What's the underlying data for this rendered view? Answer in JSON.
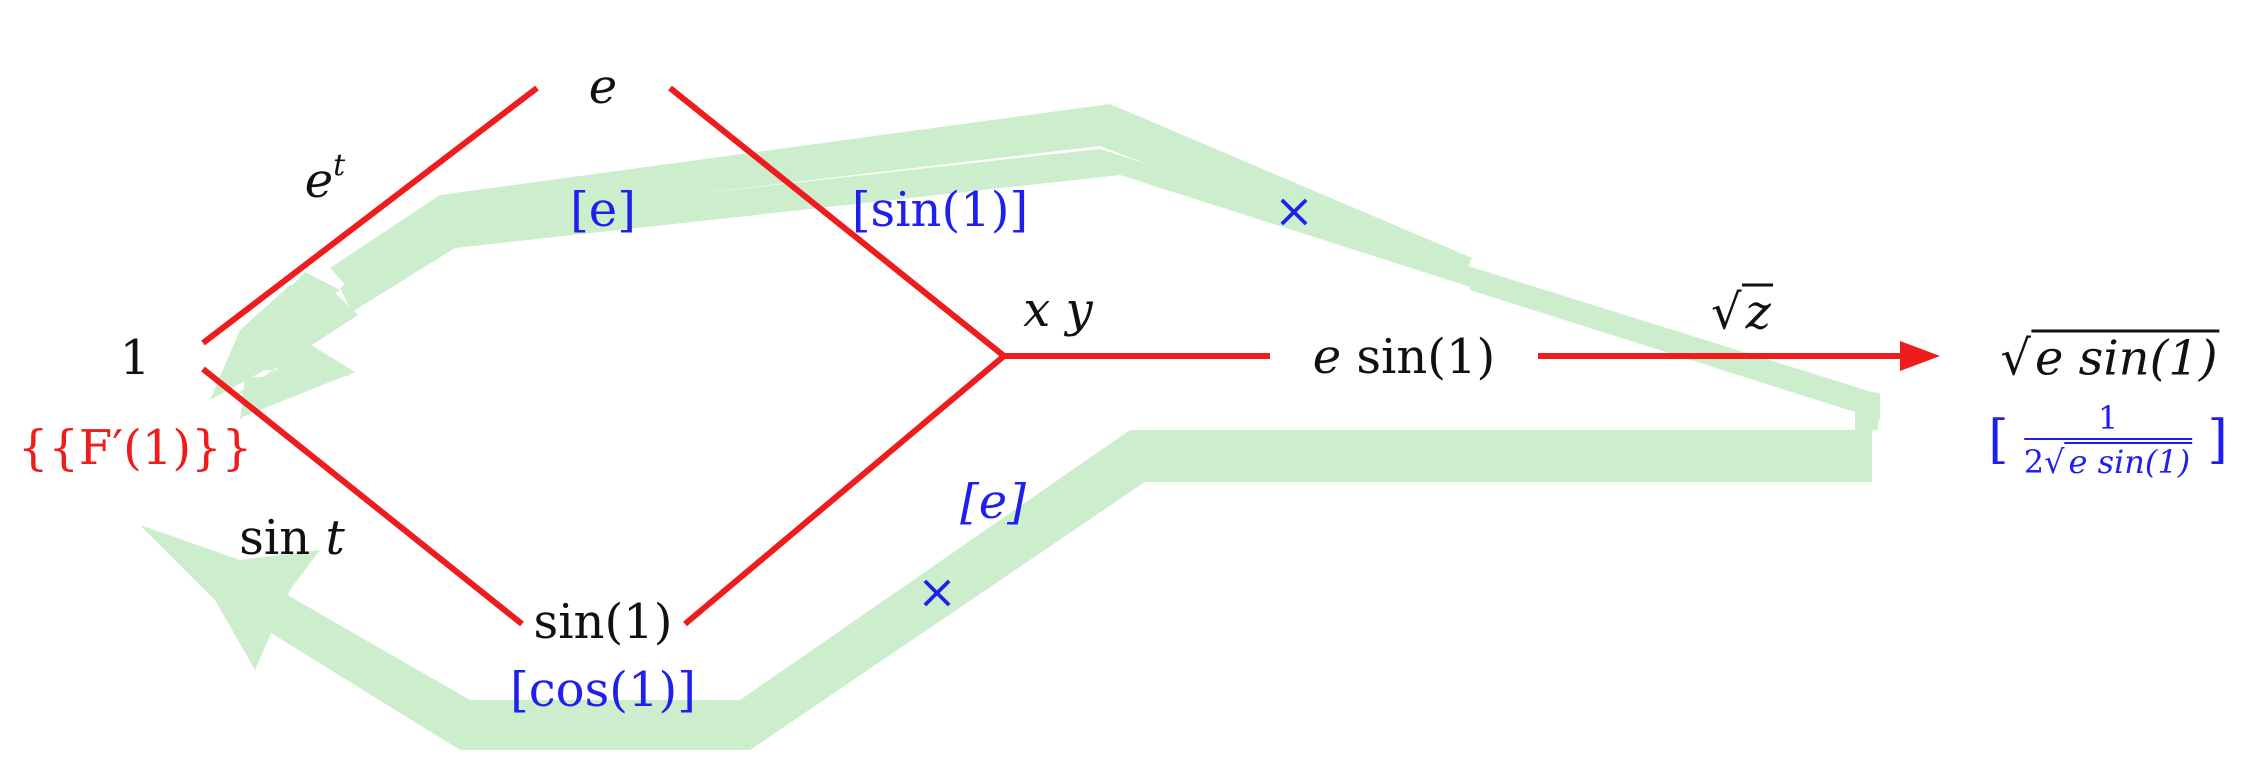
{
  "graph": {
    "nodes": {
      "input": "1",
      "exp_node": "e",
      "sin_node": "sin(1)",
      "product_node": "e",
      "product_node_fn": "sin(1)",
      "output_radicand": "e sin(1)"
    },
    "edge_ops": {
      "exp_op": "e",
      "exp_op_var": "t",
      "sin_op_fn": "sin",
      "sin_op_var": "t",
      "mul_op": "x y",
      "sqrt_op_var": "z"
    },
    "adjoints": {
      "exp_edge": "[e]",
      "sin1_edge": "[sin(1)]",
      "e_edge": "[e]",
      "cos_edge": "[cos(1)]",
      "output_open": "[",
      "output_close": "]",
      "output_numerator": "1",
      "output_denominator_coef": "2",
      "output_denominator_radicand": "e sin(1)",
      "product_mark_top": "×",
      "product_mark_bottom": "×"
    },
    "result": "{{F′(1)}}"
  },
  "colors": {
    "edge": "#ee1c1c",
    "adjoint_text": "#2020ee",
    "backprop_arrow": "#cdeecd",
    "node_text": "#111111",
    "result_text": "#ee1c1c"
  }
}
